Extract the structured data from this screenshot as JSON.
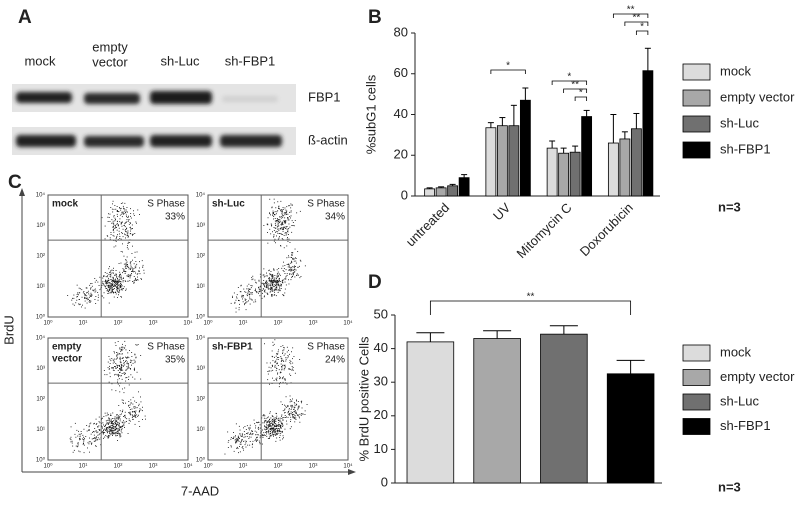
{
  "panel_labels": [
    "A",
    "B",
    "C",
    "D"
  ],
  "panel_a": {
    "lanes": [
      [
        "mock"
      ],
      [
        "empty",
        "vector"
      ],
      [
        "sh-Luc"
      ],
      [
        "sh-FBP1"
      ]
    ],
    "rows": [
      "FBP1",
      "ß-actin"
    ]
  },
  "panel_c": {
    "y_label": "BrdU",
    "x_label": "7-AAD",
    "ticks": [
      "10⁰",
      "10¹",
      "10²",
      "10³",
      "10⁴"
    ],
    "plots": [
      {
        "name": [
          "mock"
        ],
        "gate": "S Phase",
        "percent": "33%"
      },
      {
        "name": [
          "sh-Luc"
        ],
        "gate": "S Phase",
        "percent": "34%"
      },
      {
        "name": [
          "empty",
          "vector"
        ],
        "gate": "S Phase",
        "percent": "35%"
      },
      {
        "name": [
          "sh-FBP1"
        ],
        "gate": "S Phase",
        "percent": "24%"
      }
    ]
  },
  "chart_data": [
    {
      "type": "bar",
      "y_label": "%subG1 cells",
      "categories": [
        "untreated",
        "UV",
        "Mitomycin C",
        "Doxorubicin"
      ],
      "series": [
        {
          "name": "mock",
          "color": "#dcdcdc",
          "values": [
            3.5,
            33.5,
            23.5,
            26
          ],
          "error": [
            0.5,
            2.5,
            3.5,
            14
          ]
        },
        {
          "name": "empty vector",
          "color": "#a8a8a8",
          "values": [
            4,
            34.5,
            21,
            28
          ],
          "error": [
            0.5,
            4,
            2.5,
            3.5
          ]
        },
        {
          "name": "sh-Luc",
          "color": "#707070",
          "values": [
            5,
            34.5,
            21.5,
            33
          ],
          "error": [
            0.7,
            10,
            3,
            7.5
          ]
        },
        {
          "name": "sh-FBP1",
          "color": "#000000",
          "values": [
            9,
            47,
            39,
            61.5
          ],
          "error": [
            1.5,
            6,
            3,
            11
          ]
        }
      ],
      "ylim": [
        0,
        80
      ],
      "yticks": [
        0,
        20,
        40,
        60,
        80
      ],
      "annotations": [
        "*",
        "*",
        "**",
        "*",
        "**",
        "**",
        "*"
      ],
      "note": "n=3"
    },
    {
      "type": "bar",
      "y_label": "% BrdU positive Cells",
      "categories": [
        "mock",
        "empty vector",
        "sh-Luc",
        "sh-FBP1"
      ],
      "colors": [
        "#dcdcdc",
        "#a8a8a8",
        "#707070",
        "#000000"
      ],
      "values": [
        42,
        43,
        44.3,
        32.5
      ],
      "error": [
        2.7,
        2.3,
        2.5,
        4
      ],
      "ylim": [
        0,
        50
      ],
      "yticks": [
        0,
        10,
        20,
        30,
        40,
        50
      ],
      "annotations": [
        "**"
      ],
      "note": "n=3"
    }
  ]
}
